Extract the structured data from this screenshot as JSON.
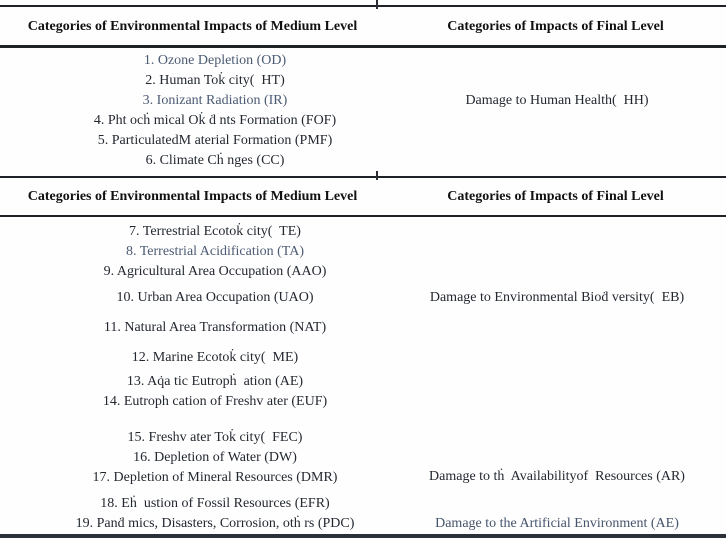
{
  "table": {
    "header": {
      "medium_level": "Categories of Environmental Impacts of Medium Level",
      "final_level": "Categories of Impacts of Final Level"
    },
    "section1": {
      "medium_items": [
        "1. Ozone Depletion (OD)",
        "2. Human Tok̇ city(  HT)",
        "3. Ionizant Radiation (IR)",
        "4. Pht ocḣ mical Ok̇ ḋ nts Formation (FOF)",
        "5. ParticulatedM aterial Formation (PMF)",
        "6. Climate Cḣ nges (CC)"
      ],
      "final_item": "Damage to Human Health(  HH)"
    },
    "section2": {
      "medium_items": [
        "7. Terrestrial Ecotok̇ city(  TE)",
        "8. Terrestrial Acidification (TA)",
        "9. Agricultural Area Occupation (AAO)",
        "10. Urban Area Occupation (UAO)",
        "11. Natural Area Transformation (NAT)",
        "12. Marine Ecotok̇ city(  ME)",
        "13. Aq̇a tic Eutropḣ  ation (AE)",
        "14. Eutroph cation of Freshv ater (EUF)",
        "15. Freshv ater Tok̇ city(  FEC)",
        "16. Depletion of Water (DW)",
        "17. Depletion of Mineral Resources (DMR)",
        "18. Eḣ  ustion of Fossil Resources (EFR)",
        "19. Panḋ mics, Disasters, Corrosion, otḣ rs (PDC)"
      ],
      "final_items": {
        "biodiversity": "Damage to Environmental Bioḋ versity(  EB)",
        "resources": "Damage to tḣ  Availabilityof  Resources (AR)",
        "artificial": "Damage to the Artificial Environment (AE)"
      }
    },
    "colors": {
      "text_primary": "#232830",
      "text_faded": "#4b5a73",
      "rule": "#1e2126",
      "background": "#fefefe"
    }
  }
}
